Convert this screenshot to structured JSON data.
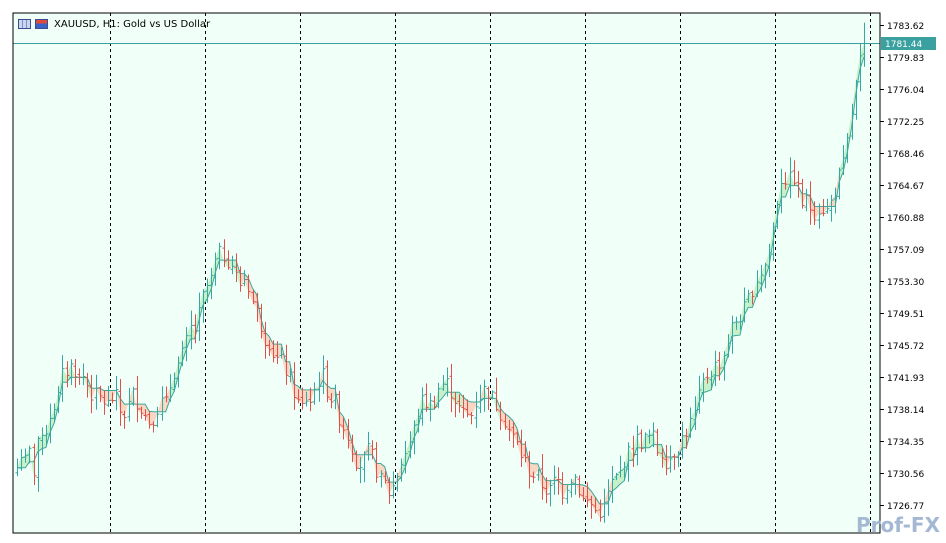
{
  "window": {
    "symbol": "XAUUSD",
    "timeframe": "H1",
    "description": "Gold vs US Dollar",
    "title_text": "XAUUSD, H1:  Gold vs US Dollar",
    "watermark": "Prof-FX"
  },
  "colors": {
    "background": "#f0fff7",
    "bull_candle": "#36a8a0",
    "bear_candle": "#e0504a",
    "fill_up": "#c8f0c8",
    "fill_down": "#fad6c2",
    "fill_line": "#3aa89c",
    "grid_line": "#000000",
    "bid_line": "#3aa0a0",
    "price_label_bg": "#3aa0a0",
    "axis_text": "#000000"
  },
  "chart_data": {
    "type": "candlestick",
    "instrument": "XAUUSD",
    "timeframe": "H1",
    "y_axis_ticks": [
      "1783.62",
      "1779.83",
      "1776.04",
      "1772.25",
      "1768.46",
      "1764.67",
      "1760.88",
      "1757.09",
      "1753.30",
      "1749.51",
      "1745.72",
      "1741.93",
      "1738.14",
      "1734.35",
      "1730.56",
      "1726.77"
    ],
    "y_tick_values": [
      1783.62,
      1779.83,
      1776.04,
      1772.25,
      1768.46,
      1764.67,
      1760.88,
      1757.09,
      1753.3,
      1749.51,
      1745.72,
      1741.93,
      1738.14,
      1734.35,
      1730.56,
      1726.77
    ],
    "ylim": [
      1724.6,
      1785.0
    ],
    "current_price": "1781.44",
    "current_price_value": 1781.44,
    "bar_count": 206,
    "grid": "vertical dashed separators",
    "bars_per_separator": 23,
    "indicator": "stepped channel line with filled band (green when rising, orange when falling)",
    "close_anchors": [
      [
        0,
        1731.2
      ],
      [
        3,
        1733.3
      ],
      [
        6,
        1731.0
      ],
      [
        8,
        1733.5
      ],
      [
        10,
        1730.8
      ],
      [
        12,
        1734.8
      ],
      [
        15,
        1734.0
      ],
      [
        19,
        1737.0
      ],
      [
        22,
        1738.5
      ],
      [
        25,
        1739.5
      ],
      [
        28,
        1742.5
      ],
      [
        31,
        1742.8
      ],
      [
        34,
        1743.5
      ],
      [
        37,
        1741.5
      ],
      [
        40,
        1742.0
      ],
      [
        45,
        1740.0
      ],
      [
        48,
        1739.5
      ],
      [
        51,
        1739.3
      ],
      [
        55,
        1738.6
      ],
      [
        59,
        1740.0
      ],
      [
        62,
        1738.0
      ],
      [
        64,
        1737.3
      ],
      [
        67,
        1738.4
      ],
      [
        70,
        1739.8
      ],
      [
        74,
        1738.8
      ],
      [
        78,
        1737.1
      ],
      [
        81,
        1736.5
      ],
      [
        84,
        1738.2
      ],
      [
        88,
        1739.0
      ],
      [
        90,
        1738.6
      ],
      [
        94,
        1742.5
      ],
      [
        98,
        1743.5
      ],
      [
        102,
        1745.5
      ],
      [
        104,
        1747.8
      ],
      [
        107,
        1747.3
      ],
      [
        110,
        1749.3
      ],
      [
        112,
        1751.0
      ],
      [
        114,
        1752.5
      ],
      [
        117,
        1753.0
      ],
      [
        120,
        1755.5
      ],
      [
        123,
        1756.5
      ],
      [
        126,
        1756.3
      ],
      [
        129,
        1755.5
      ],
      [
        131,
        1755.0
      ],
      [
        134,
        1752.4
      ],
      [
        136,
        1753.8
      ],
      [
        139,
        1753.5
      ],
      [
        142,
        1751.0
      ],
      [
        146,
        1749.0
      ],
      [
        148,
        1747.8
      ],
      [
        151,
        1746.0
      ],
      [
        153,
        1746.3
      ],
      [
        155,
        1744.7
      ],
      [
        159,
        1743.5
      ],
      [
        161,
        1743.8
      ],
      [
        164,
        1741.5
      ],
      [
        167,
        1740.5
      ],
      [
        169,
        1739.0
      ],
      [
        172,
        1738.2
      ],
      [
        175,
        1739.5
      ],
      [
        177,
        1739.0
      ],
      [
        180,
        1740.5
      ],
      [
        182,
        1741.6
      ],
      [
        185,
        1742.0
      ],
      [
        188,
        1740.0
      ],
      [
        192,
        1739.0
      ],
      [
        196,
        1736.5
      ],
      [
        199,
        1735.5
      ],
      [
        203,
        1733.3
      ],
      [
        206,
        1731.5
      ],
      [
        209,
        1731.8
      ],
      [
        212,
        1733.0
      ],
      [
        216,
        1732.2
      ],
      [
        219,
        1729.5
      ],
      [
        222,
        1729.4
      ],
      [
        224,
        1728.3
      ],
      [
        226,
        1728.2
      ],
      [
        229,
        1730.0
      ],
      [
        232,
        1731.8
      ],
      [
        236,
        1733.6
      ],
      [
        239,
        1735.0
      ],
      [
        242,
        1737.7
      ],
      [
        245,
        1739.0
      ],
      [
        248,
        1738.9
      ],
      [
        251,
        1738.4
      ],
      [
        254,
        1740.5
      ],
      [
        257,
        1741.1
      ],
      [
        260,
        1741.1
      ],
      [
        264,
        1739.8
      ],
      [
        268,
        1737.7
      ],
      [
        272,
        1737.3
      ],
      [
        275,
        1737.5
      ],
      [
        278,
        1739.5
      ],
      [
        281,
        1740.1
      ],
      [
        284,
        1740.6
      ],
      [
        287,
        1739.4
      ],
      [
        290,
        1738.7
      ],
      [
        294,
        1737.2
      ],
      [
        298,
        1735.3
      ],
      [
        302,
        1734.0
      ],
      [
        306,
        1732.2
      ],
      [
        310,
        1730.8
      ],
      [
        314,
        1730.1
      ],
      [
        318,
        1729.0
      ],
      [
        322,
        1728.3
      ],
      [
        326,
        1730.1
      ],
      [
        330,
        1728.3
      ],
      [
        334,
        1730.1
      ],
      [
        337,
        1730.2
      ],
      [
        340,
        1728.5
      ],
      [
        343,
        1726.9
      ],
      [
        346,
        1727.3
      ],
      [
        349,
        1726.0
      ],
      [
        352,
        1726.1
      ],
      [
        355,
        1726.5
      ],
      [
        358,
        1728.7
      ],
      [
        361,
        1729.8
      ],
      [
        364,
        1730.1
      ],
      [
        367,
        1732.2
      ],
      [
        371,
        1733.0
      ],
      [
        374,
        1734.5
      ],
      [
        378,
        1734.3
      ],
      [
        381,
        1734.6
      ],
      [
        384,
        1735.0
      ],
      [
        387,
        1733.3
      ],
      [
        390,
        1733.0
      ],
      [
        393,
        1731.8
      ],
      [
        396,
        1733.0
      ],
      [
        400,
        1733.8
      ],
      [
        403,
        1735.0
      ],
      [
        406,
        1736.1
      ],
      [
        409,
        1737.0
      ],
      [
        412,
        1739.3
      ],
      [
        415,
        1741.4
      ],
      [
        418,
        1742.5
      ],
      [
        421,
        1743.0
      ],
      [
        424,
        1743.6
      ],
      [
        427,
        1744.6
      ],
      [
        430,
        1746.7
      ],
      [
        433,
        1748.2
      ],
      [
        436,
        1749.0
      ],
      [
        439,
        1749.6
      ],
      [
        442,
        1751.0
      ],
      [
        445,
        1752.8
      ],
      [
        448,
        1754.0
      ],
      [
        451,
        1754.8
      ],
      [
        454,
        1756.0
      ],
      [
        457,
        1759.5
      ],
      [
        460,
        1763.5
      ],
      [
        463,
        1766.4
      ],
      [
        466,
        1764.6
      ],
      [
        469,
        1766.1
      ],
      [
        472,
        1764.0
      ],
      [
        475,
        1762.3
      ],
      [
        478,
        1762.8
      ],
      [
        481,
        1761.4
      ],
      [
        484,
        1762.0
      ],
      [
        487,
        1762.0
      ],
      [
        490,
        1761.5
      ],
      [
        493,
        1763.2
      ],
      [
        496,
        1765.2
      ],
      [
        499,
        1766.4
      ],
      [
        502,
        1769.6
      ],
      [
        505,
        1774.0
      ],
      [
        509,
        1778.7
      ],
      [
        512,
        1781.44
      ]
    ]
  }
}
